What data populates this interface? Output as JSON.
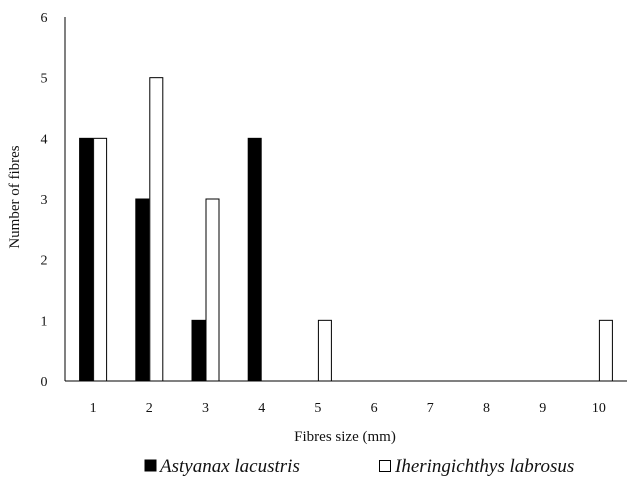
{
  "chart_data": {
    "type": "bar",
    "title": "",
    "xlabel": "Fibres size (mm)",
    "ylabel": "Number  of fibres",
    "categories": [
      "1",
      "2",
      "3",
      "4",
      "5",
      "6",
      "7",
      "8",
      "9",
      "10"
    ],
    "series": [
      {
        "name": "Astyanax lacustris",
        "values": [
          4,
          3,
          1,
          4,
          0,
          0,
          0,
          0,
          0,
          0
        ],
        "fill": "#000000"
      },
      {
        "name": "Iheringichthys labrosus",
        "values": [
          4,
          5,
          3,
          0,
          1,
          0,
          0,
          0,
          0,
          1
        ],
        "fill": "#ffffff"
      }
    ],
    "ylim": [
      0,
      6
    ],
    "yticks": [
      "0",
      "1",
      "2",
      "3",
      "4",
      "5",
      "6"
    ],
    "grid": false,
    "legend_position": "bottom"
  }
}
